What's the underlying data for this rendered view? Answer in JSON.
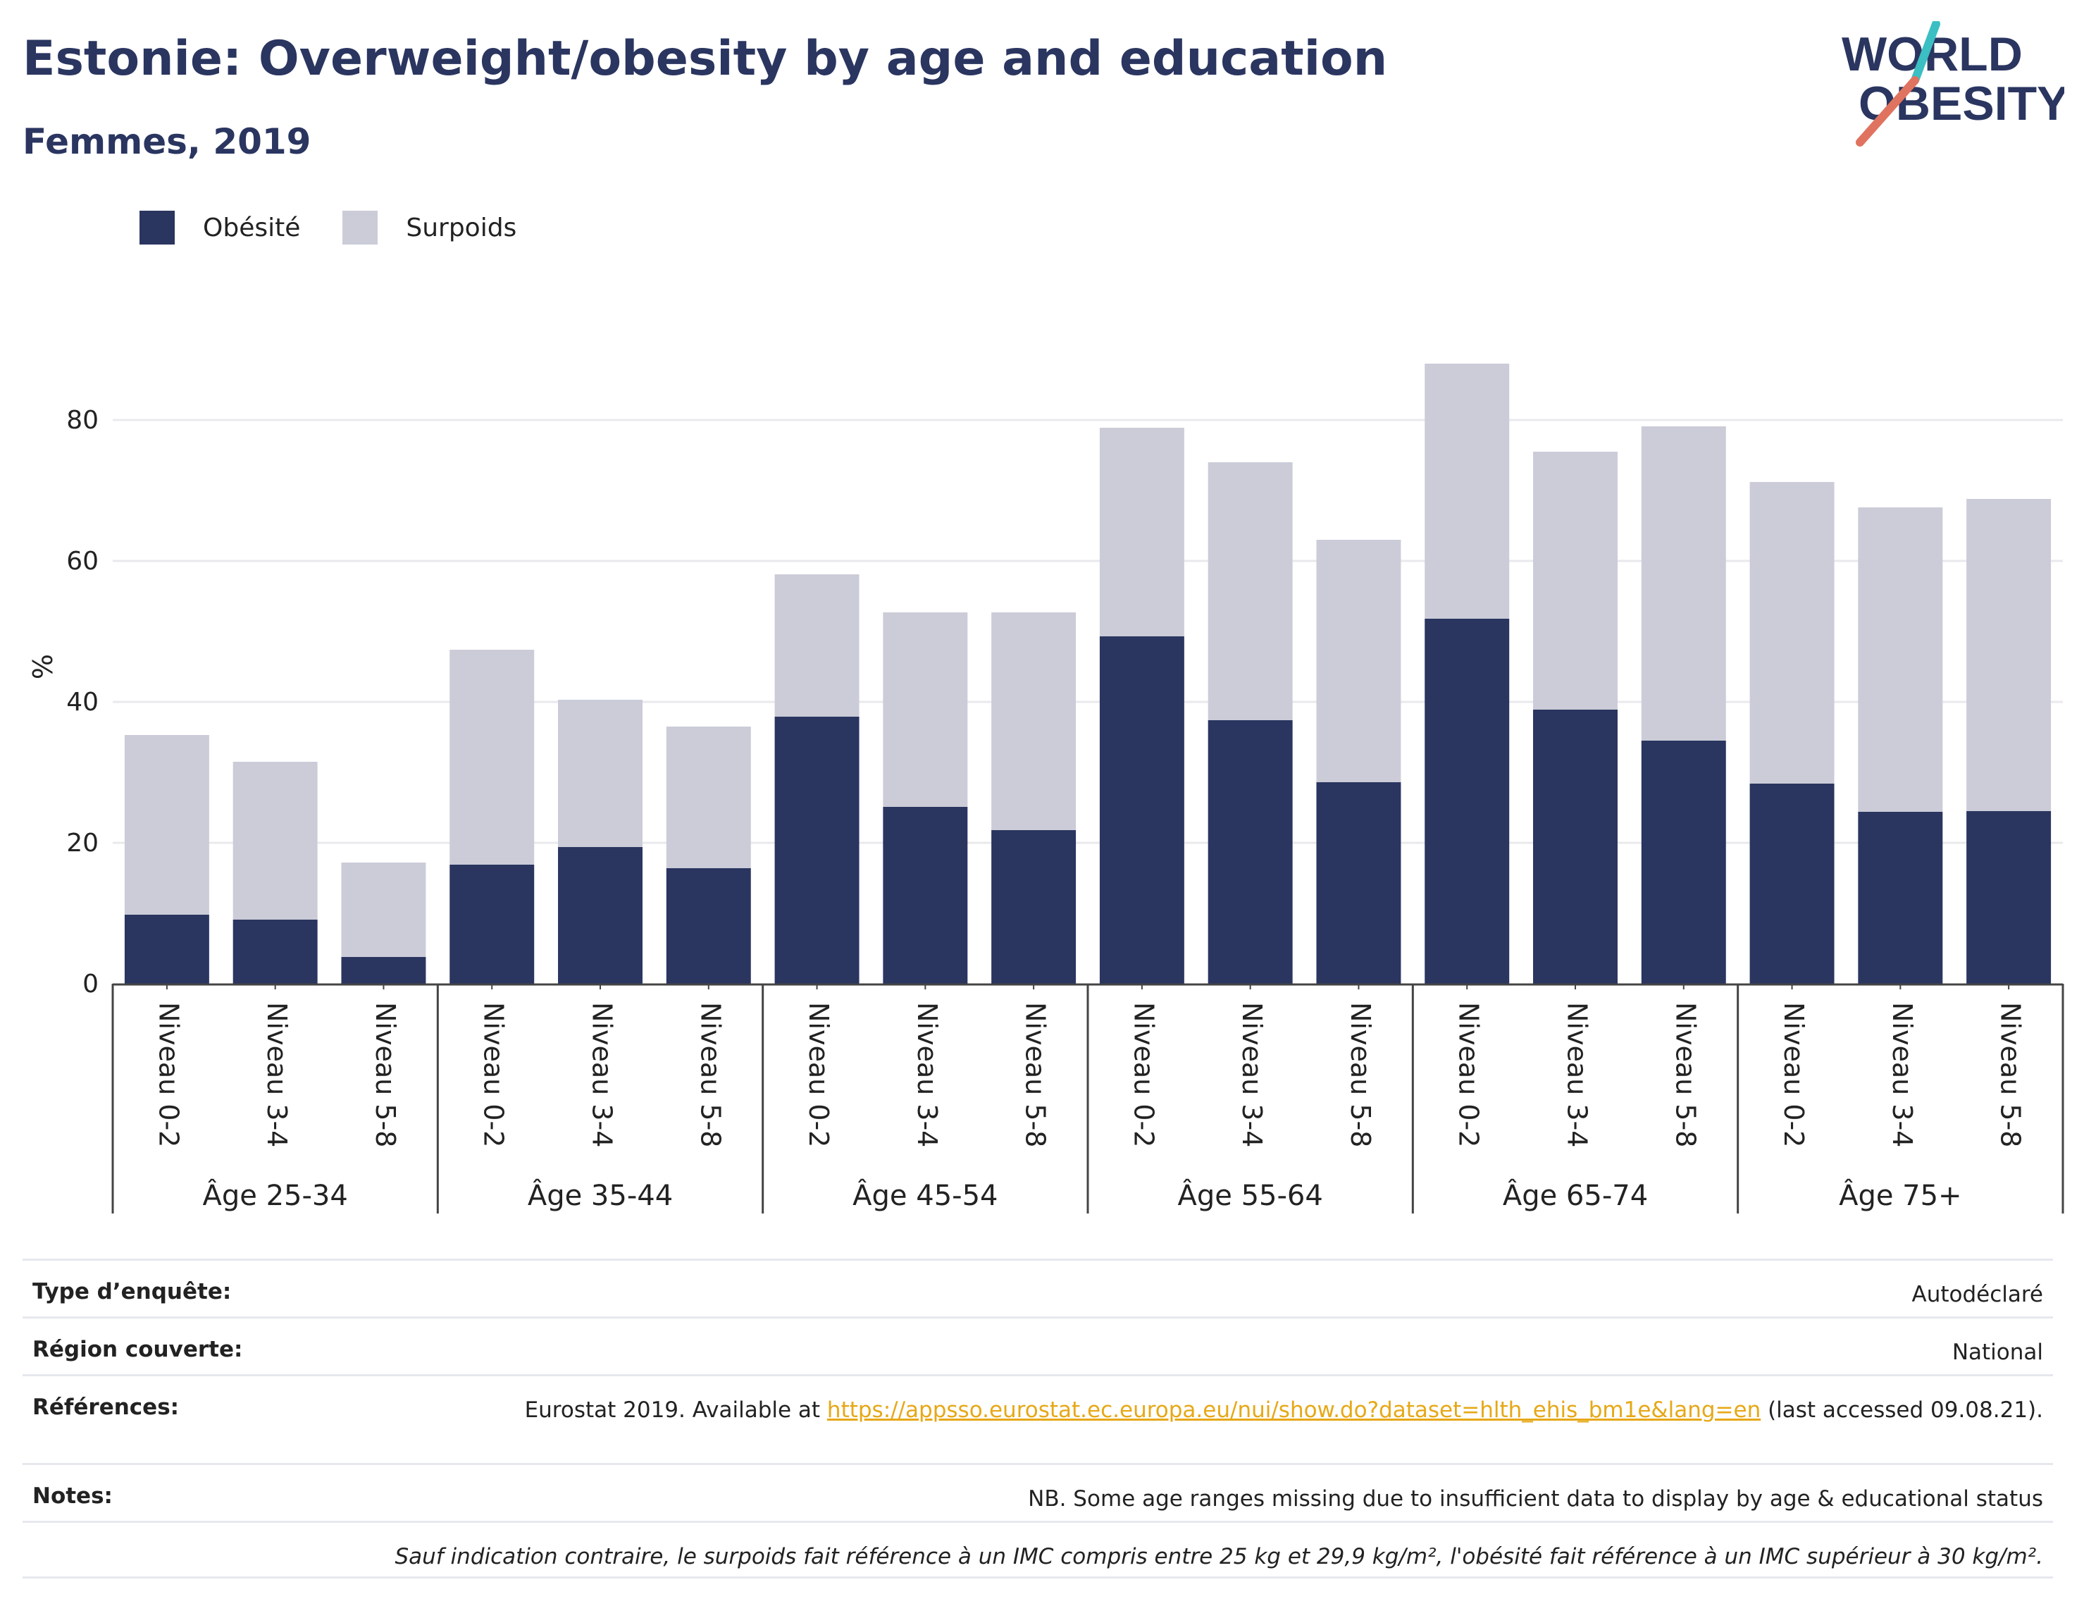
{
  "title": "Estonie: Overweight/obesity by age and education",
  "subtitle": "Femmes, 2019",
  "logo": {
    "line1": "WORLD",
    "line2": "OBESITY"
  },
  "colors": {
    "obesity": "#2a3560",
    "overweight": "#cbccd8",
    "title": "#2a3560",
    "accent_teal": "#3bbfc3",
    "accent_red": "#e0735f",
    "link": "#e6a817"
  },
  "chart_data": {
    "type": "bar",
    "stacked": true,
    "ylabel": "%",
    "ylim": [
      0,
      90
    ],
    "yticks": [
      0,
      20,
      40,
      60,
      80
    ],
    "grid": true,
    "legend_position": "top-left",
    "groups": [
      {
        "label": "Âge 25-34",
        "categories": [
          "Niveau 0-2",
          "Niveau 3-4",
          "Niveau 5-8"
        ]
      },
      {
        "label": "Âge 35-44",
        "categories": [
          "Niveau 0-2",
          "Niveau 3-4",
          "Niveau 5-8"
        ]
      },
      {
        "label": "Âge 45-54",
        "categories": [
          "Niveau 0-2",
          "Niveau 3-4",
          "Niveau 5-8"
        ]
      },
      {
        "label": "Âge 55-64",
        "categories": [
          "Niveau 0-2",
          "Niveau 3-4",
          "Niveau 5-8"
        ]
      },
      {
        "label": "Âge 65-74",
        "categories": [
          "Niveau 0-2",
          "Niveau 3-4",
          "Niveau 5-8"
        ]
      },
      {
        "label": "Âge 75+",
        "categories": [
          "Niveau 0-2",
          "Niveau 3-4",
          "Niveau 5-8"
        ]
      }
    ],
    "series": [
      {
        "name": "Obésité",
        "values": [
          9.8,
          9.1,
          3.8,
          16.9,
          19.4,
          16.4,
          37.9,
          25.1,
          21.8,
          49.3,
          37.4,
          28.6,
          51.8,
          38.9,
          34.5,
          28.4,
          24.4,
          24.5
        ]
      },
      {
        "name": "Surpoids",
        "values": [
          25.5,
          22.4,
          13.4,
          30.5,
          20.9,
          20.1,
          20.2,
          27.6,
          30.9,
          29.6,
          36.6,
          34.4,
          36.2,
          36.6,
          44.6,
          42.8,
          43.2,
          44.3
        ]
      }
    ]
  },
  "info": {
    "survey_label": "Type d’enquête:",
    "survey_value": "Autodéclaré",
    "region_label": "Région couverte:",
    "region_value": "National",
    "ref_label": "Références:",
    "ref_prefix": "Eurostat 2019. Available at ",
    "ref_link": "https://appsso.eurostat.ec.europa.eu/nui/show.do?dataset=hlth_ehis_bm1e&lang=en",
    "ref_suffix": " (last accessed 09.08.21).",
    "notes_label": "Notes:",
    "notes_value": "NB. Some age ranges missing due to insufficient data to display by age & educational status",
    "footnote": "Sauf indication contraire, le surpoids fait référence à un IMC compris entre 25 kg et 29,9 kg/m², l'obésité fait référence à un IMC supérieur à 30 kg/m²."
  }
}
